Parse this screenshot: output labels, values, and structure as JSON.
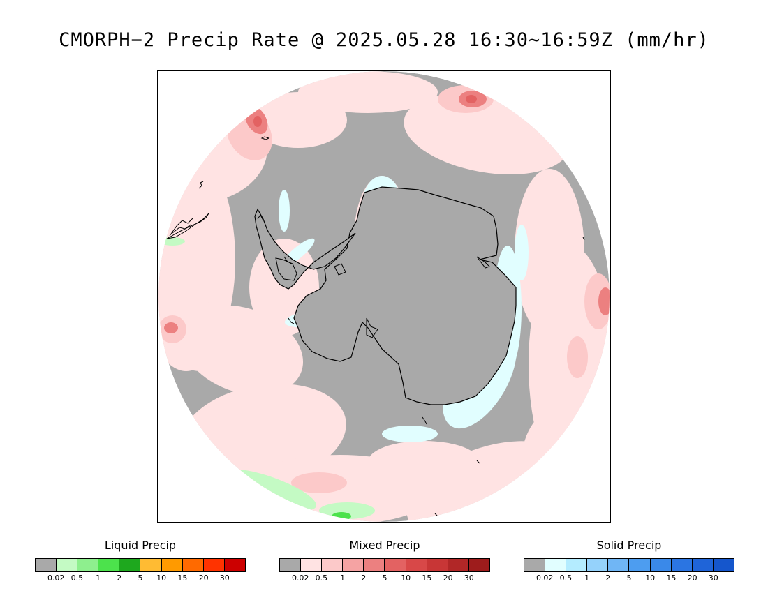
{
  "title": "CMORPH−2 Precip Rate @ 2025.05.28 16:30∼16:59Z (mm/hr)",
  "map": {
    "projection": "south-polar-stereographic",
    "ocean_color": "#a9a9a9",
    "coastline_color": "#000000",
    "frame_color": "#000000"
  },
  "legends": [
    {
      "title": "Liquid Precip",
      "ticks": [
        "0.02",
        "0.5",
        "1",
        "2",
        "5",
        "10",
        "15",
        "20",
        "30"
      ],
      "colors": [
        "#a9a9a9",
        "#c4fac4",
        "#8eef8e",
        "#4ce24c",
        "#1ea81e",
        "#ffbb33",
        "#ff9a00",
        "#ff6a00",
        "#ff3300",
        "#cc0000"
      ]
    },
    {
      "title": "Mixed Precip",
      "ticks": [
        "0.02",
        "0.5",
        "1",
        "2",
        "5",
        "10",
        "15",
        "20",
        "30"
      ],
      "colors": [
        "#a9a9a9",
        "#ffe3e3",
        "#fcc9c9",
        "#f5a3a3",
        "#ec8080",
        "#e36262",
        "#d84848",
        "#c83636",
        "#b12727",
        "#9e1c1c"
      ]
    },
    {
      "title": "Solid Precip",
      "ticks": [
        "0.02",
        "0.5",
        "1",
        "2",
        "5",
        "10",
        "15",
        "20",
        "30"
      ],
      "colors": [
        "#a9a9a9",
        "#e1feff",
        "#b4ecff",
        "#95d2fb",
        "#70b6f5",
        "#4d9df0",
        "#3a89e9",
        "#2b75e2",
        "#1f64d8",
        "#1556cc"
      ]
    }
  ]
}
